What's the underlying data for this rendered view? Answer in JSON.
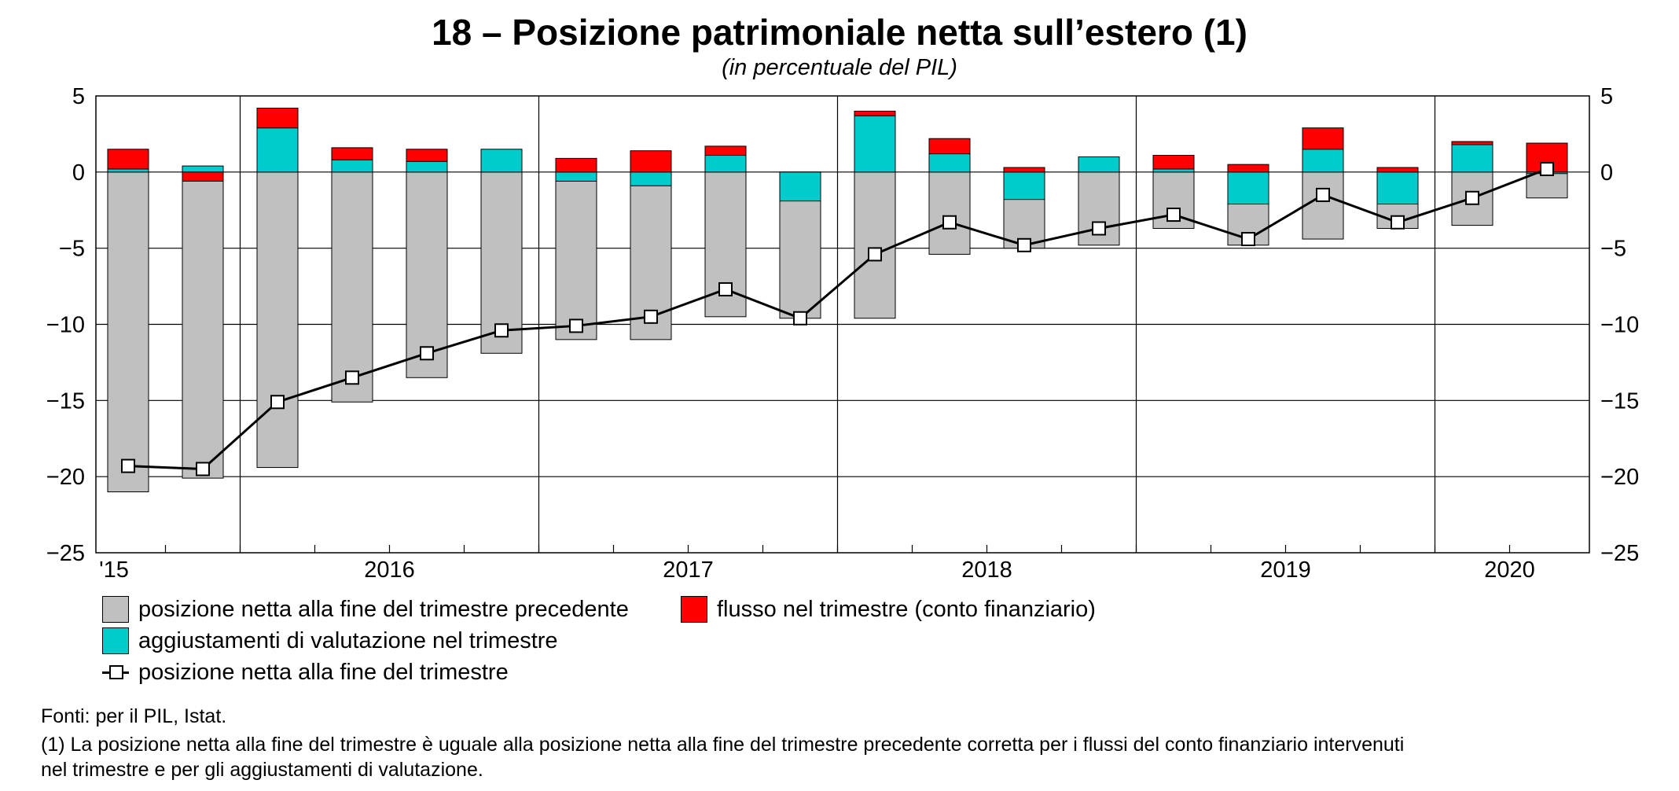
{
  "chart_data": {
    "type": "bar",
    "title": "18 – Posizione patrimoniale netta sull’estero (1)",
    "subtitle": "(in percentuale del PIL)",
    "ylim": [
      -25,
      5
    ],
    "yticks": [
      5,
      0,
      -5,
      -10,
      -15,
      -20,
      -25
    ],
    "ytick_labels": [
      "5",
      "0",
      "−5",
      "−10",
      "−15",
      "−20",
      "−25"
    ],
    "quarters": [
      "2015Q3",
      "2015Q4",
      "2016Q1",
      "2016Q2",
      "2016Q3",
      "2016Q4",
      "2017Q1",
      "2017Q2",
      "2017Q3",
      "2017Q4",
      "2018Q1",
      "2018Q2",
      "2018Q3",
      "2018Q4",
      "2019Q1",
      "2019Q2",
      "2019Q3",
      "2019Q4",
      "2020Q1",
      "2020Q2"
    ],
    "year_labels": [
      "'15",
      "2016",
      "2017",
      "2018",
      "2019",
      "2020"
    ],
    "series": [
      {
        "name": "posizione netta alla fine del trimestre precedente",
        "color": "#c0c0c0",
        "values": [
          -21.0,
          -20.1,
          -19.4,
          -15.1,
          -13.5,
          -11.9,
          -11.0,
          -11.0,
          -9.5,
          -9.6,
          -9.6,
          -5.4,
          -5.0,
          -4.8,
          -3.7,
          -4.8,
          -4.4,
          -3.7,
          -3.5,
          -1.7
        ]
      },
      {
        "name": "aggiustamenti di valutazione nel trimestre",
        "color": "#00cccc",
        "values": [
          0.2,
          0.4,
          2.9,
          0.8,
          0.7,
          1.5,
          -0.6,
          -0.9,
          1.1,
          -1.9,
          3.7,
          1.2,
          -1.8,
          1.0,
          0.2,
          -2.1,
          1.5,
          -2.1,
          2.0,
          -0.1
        ]
      },
      {
        "name": "flusso nel trimestre (conto finanziario)",
        "color": "#ff0000",
        "values": [
          1.3,
          -0.6,
          1.3,
          0.8,
          0.8,
          0.0,
          0.9,
          1.4,
          0.6,
          0.0,
          0.3,
          1.0,
          0.3,
          0.0,
          0.9,
          0.5,
          1.4,
          0.3,
          -0.2,
          1.9
        ]
      },
      {
        "name": "posizione netta alla fine del trimestre",
        "color": "#000000",
        "values": [
          -19.3,
          -19.5,
          -15.1,
          -13.5,
          -11.9,
          -10.4,
          -10.1,
          -9.5,
          -7.7,
          -9.6,
          -5.4,
          -3.3,
          -4.8,
          -3.7,
          -2.8,
          -4.4,
          -1.5,
          -3.3,
          -1.7,
          0.2
        ]
      }
    ]
  },
  "legend": {
    "item1": "posizione netta alla fine del trimestre precedente",
    "item2": "flusso nel trimestre (conto finanziario)",
    "item3": "aggiustamenti di valutazione nel trimestre",
    "item4": "posizione netta alla fine del trimestre",
    "color_gray": "#c0c0c0",
    "color_red": "#ff0000",
    "color_cyan": "#00cccc"
  },
  "notes": {
    "source": "Fonti: per il PIL, Istat.",
    "footnote_line1": "(1) La posizione netta alla fine del trimestre è uguale alla posizione netta alla fine del trimestre precedente corretta per i flussi del conto finanziario intervenuti",
    "footnote_line2": "nel trimestre e per gli aggiustamenti di valutazione."
  }
}
